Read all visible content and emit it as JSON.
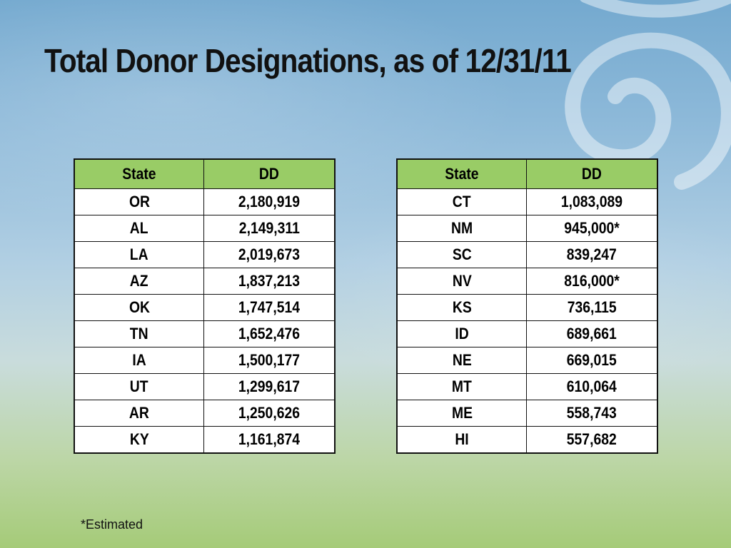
{
  "slide": {
    "title": "Total Donor Designations, as of 12/31/11",
    "footnote": "*Estimated"
  },
  "tables": [
    {
      "headers": [
        "State",
        "DD"
      ],
      "rows": [
        [
          "OR",
          "2,180,919"
        ],
        [
          "AL",
          "2,149,311"
        ],
        [
          "LA",
          "2,019,673"
        ],
        [
          "AZ",
          "1,837,213"
        ],
        [
          "OK",
          "1,747,514"
        ],
        [
          "TN",
          "1,652,476"
        ],
        [
          "IA",
          "1,500,177"
        ],
        [
          "UT",
          "1,299,617"
        ],
        [
          "AR",
          "1,250,626"
        ],
        [
          "KY",
          "1,161,874"
        ]
      ]
    },
    {
      "headers": [
        "State",
        "DD"
      ],
      "rows": [
        [
          "CT",
          "1,083,089"
        ],
        [
          "NM",
          "945,000*"
        ],
        [
          "SC",
          "839,247"
        ],
        [
          "NV",
          "816,000*"
        ],
        [
          "KS",
          "736,115"
        ],
        [
          "ID",
          "689,661"
        ],
        [
          "NE",
          "669,015"
        ],
        [
          "MT",
          "610,064"
        ],
        [
          "ME",
          "558,743"
        ],
        [
          "HI",
          "557,682"
        ]
      ]
    }
  ],
  "colors": {
    "header_fill": "#99cc66",
    "border": "#111111",
    "background_top": "#74a9cf",
    "background_bottom": "#a5cb78"
  }
}
